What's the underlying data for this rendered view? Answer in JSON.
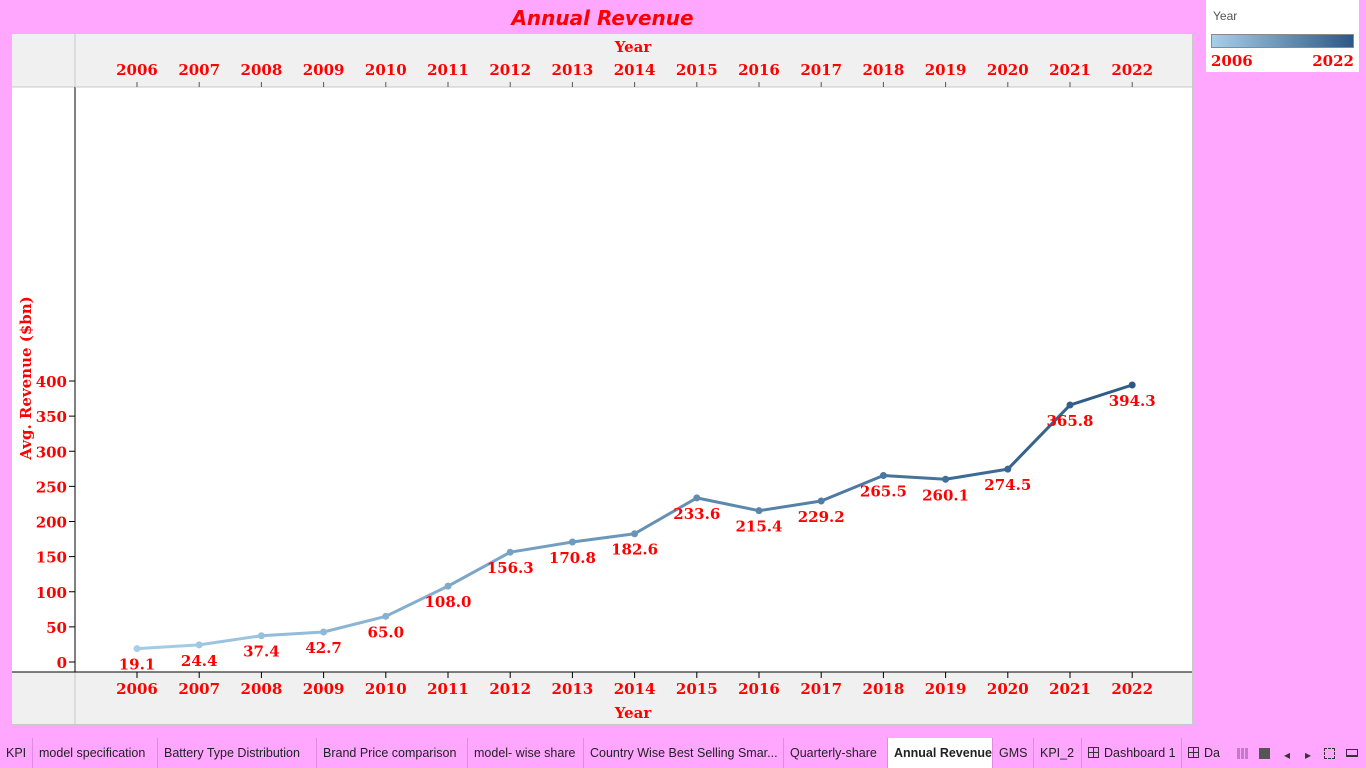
{
  "title": "Annual Revenue",
  "chart_data": {
    "type": "line",
    "x_axis_label": "Year",
    "y_axis_label": "Avg. Revenue ($bn)",
    "categories": [
      "2006",
      "2007",
      "2008",
      "2009",
      "2010",
      "2011",
      "2012",
      "2013",
      "2014",
      "2015",
      "2016",
      "2017",
      "2018",
      "2019",
      "2020",
      "2021",
      "2022"
    ],
    "values": [
      19.1,
      24.4,
      37.4,
      42.7,
      65.0,
      108.0,
      156.3,
      170.8,
      182.6,
      233.6,
      215.4,
      229.2,
      265.5,
      260.1,
      274.5,
      365.8,
      394.3
    ],
    "data_labels": [
      "19.1",
      "24.4",
      "37.4",
      "42.7",
      "65.0",
      "108.0",
      "156.3",
      "170.8",
      "182.6",
      "233.6",
      "215.4",
      "229.2",
      "265.5",
      "260.1",
      "274.5",
      "365.8",
      "394.3"
    ],
    "y_ticks": [
      0,
      50,
      100,
      150,
      200,
      250,
      300,
      350,
      400
    ],
    "ylim": [
      0,
      400
    ],
    "color_by": "Year",
    "color_range": [
      "#a6cfe9",
      "#2b5886"
    ],
    "label_color": "#ff0000",
    "grid": false
  },
  "legend": {
    "title": "Year",
    "min_label": "2006",
    "max_label": "2022"
  },
  "tabs": [
    {
      "label": "KPI",
      "active": false
    },
    {
      "label": "model specification",
      "active": false
    },
    {
      "label": "Battery Type Distribution",
      "active": false
    },
    {
      "label": "Brand Price comparison",
      "active": false
    },
    {
      "label": "model- wise share",
      "active": false
    },
    {
      "label": "Country Wise Best Selling Smar...",
      "active": false
    },
    {
      "label": "Quarterly-share",
      "active": false
    },
    {
      "label": "Annual Revenue",
      "active": true
    },
    {
      "label": "GMS",
      "active": false
    },
    {
      "label": "KPI_2",
      "active": false
    },
    {
      "label": "Dashboard 1",
      "active": false
    },
    {
      "label": "Da",
      "active": false
    }
  ],
  "nav_icons": [
    "film-strip-icon",
    "sheet-icon",
    "prev-arrow-icon",
    "next-arrow-icon",
    "fullscreen-icon",
    "presentation-icon"
  ]
}
